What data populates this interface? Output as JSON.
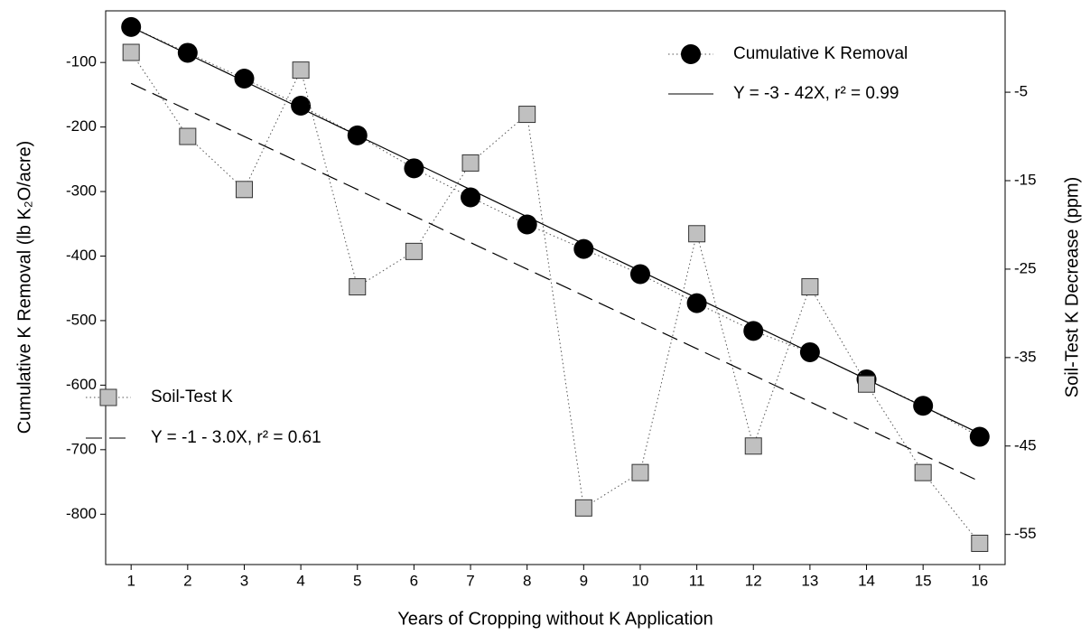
{
  "chart_data": {
    "type": "line",
    "x_label": "Years of Cropping without K Application",
    "y_label": "Cumulative K Removal (lb K₂O/acre)",
    "y2_label": "Soil-Test K Decrease (ppm)",
    "x": [
      1,
      2,
      3,
      4,
      5,
      6,
      7,
      8,
      9,
      10,
      11,
      12,
      13,
      14,
      15,
      16
    ],
    "xlim": [
      0.55,
      16.45
    ],
    "xticks": [
      1,
      2,
      3,
      4,
      5,
      6,
      7,
      8,
      9,
      10,
      11,
      12,
      13,
      14,
      15,
      16
    ],
    "ylim": [
      -878,
      -20
    ],
    "yticks": [
      -100,
      -200,
      -300,
      -400,
      -500,
      -600,
      -700,
      -800
    ],
    "y2lim": [
      -58.4,
      4.2
    ],
    "y2ticks": [
      -5,
      -15,
      -25,
      -35,
      -45,
      -55
    ],
    "series": [
      {
        "name": "Cumulative K Removal",
        "color": "#000000",
        "marker": "circle",
        "line": "dotted",
        "values": [
          -45,
          -85,
          -125,
          -167,
          -213,
          -264,
          -309,
          -351,
          -389,
          -428,
          -473,
          -516,
          -549,
          -591,
          -632,
          -680
        ]
      },
      {
        "name": "Y = -3 - 42X, r² = 0.99",
        "color": "#000000",
        "line": "solid",
        "values": [
          -45,
          -87,
          -129,
          -171,
          -213,
          -255,
          -297,
          -339,
          -381,
          -423,
          -465,
          -507,
          -549,
          -591,
          -633,
          -675
        ]
      },
      {
        "name": "Soil-Test K",
        "color": "#c0c0c0",
        "marker": "square",
        "line": "dotted",
        "axis": "y2",
        "values": [
          -0.5,
          -10,
          -16,
          -2.5,
          -27,
          -23,
          -13,
          -7.5,
          -52,
          -48,
          -21,
          -45,
          -27,
          -38,
          -48,
          -56
        ]
      },
      {
        "name": "Y = -1 - 3.0X, r² = 0.61",
        "color": "#000000",
        "line": "dashed",
        "axis": "y2",
        "values": [
          -4,
          -7,
          -10,
          -13,
          -16,
          -19,
          -22,
          -25,
          -28,
          -31,
          -34,
          -37,
          -40,
          -43,
          -46,
          -49
        ]
      }
    ]
  }
}
